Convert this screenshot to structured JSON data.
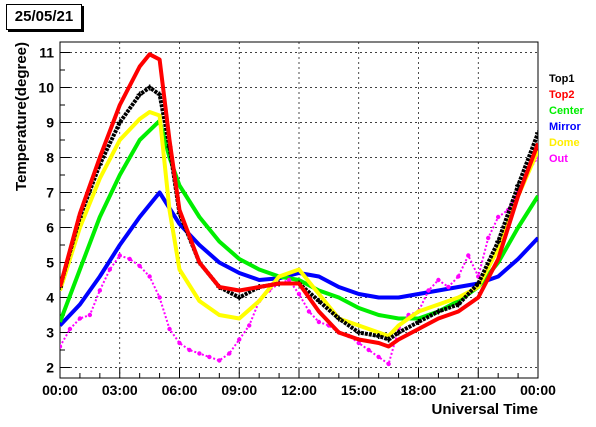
{
  "date_label": "25/05/21",
  "chart_data": {
    "type": "scatter",
    "title": "",
    "xlabel": "Universal Time",
    "ylabel": "Temperature(degree)",
    "x_unit": "hours UT",
    "xlim": [
      0,
      24
    ],
    "ylim": [
      1.7,
      11.3
    ],
    "x_tick_values": [
      0,
      3,
      6,
      9,
      12,
      15,
      18,
      21,
      24
    ],
    "x_tick_labels": [
      "00:00",
      "03:00",
      "06:00",
      "09:00",
      "12:00",
      "15:00",
      "18:00",
      "21:00",
      "00:00"
    ],
    "y_tick_values": [
      2,
      3,
      4,
      5,
      6,
      7,
      8,
      9,
      10,
      11
    ],
    "y_tick_labels": [
      "2",
      "3",
      "4",
      "5",
      "6",
      "7",
      "8",
      "9",
      "10",
      "11"
    ],
    "grid": true,
    "legend_position": "right",
    "series": [
      {
        "name": "Top1",
        "color": "#000000",
        "marker": "cross",
        "x": [
          0,
          1,
          2,
          3,
          4,
          4.5,
          5,
          5.5,
          6,
          7,
          8,
          9,
          10,
          11,
          12,
          13,
          14,
          15,
          16,
          16.5,
          17,
          18,
          19,
          20,
          21,
          22,
          23,
          24
        ],
        "y": [
          4.3,
          6.3,
          7.8,
          9.0,
          9.8,
          10.0,
          9.8,
          8.3,
          6.4,
          5.0,
          4.3,
          4.0,
          4.3,
          4.4,
          4.4,
          3.9,
          3.4,
          3.0,
          2.9,
          2.8,
          3.0,
          3.3,
          3.6,
          3.8,
          4.4,
          5.6,
          7.2,
          8.7
        ]
      },
      {
        "name": "Top2",
        "color": "#ff0000",
        "marker": "line",
        "x": [
          0,
          1,
          2,
          3,
          4,
          4.5,
          5,
          5.5,
          6,
          7,
          8,
          9,
          10,
          11,
          12,
          13,
          14,
          15,
          16,
          16.5,
          17,
          18,
          19,
          20,
          21,
          22,
          23,
          24
        ],
        "y": [
          4.3,
          6.4,
          8.0,
          9.5,
          10.6,
          10.95,
          10.8,
          8.5,
          6.5,
          5.0,
          4.3,
          4.2,
          4.3,
          4.4,
          4.4,
          3.6,
          3.0,
          2.8,
          2.7,
          2.6,
          2.8,
          3.1,
          3.4,
          3.6,
          4.0,
          5.1,
          6.9,
          8.4
        ]
      },
      {
        "name": "Center",
        "color": "#00ee00",
        "marker": "line",
        "x": [
          0,
          1,
          2,
          3,
          4,
          5,
          5.5,
          6,
          7,
          8,
          9,
          10,
          11,
          12,
          13,
          14,
          15,
          16,
          17,
          18,
          19,
          20,
          21,
          22,
          23,
          24
        ],
        "y": [
          3.3,
          4.8,
          6.3,
          7.5,
          8.5,
          9.05,
          8.0,
          7.2,
          6.3,
          5.6,
          5.1,
          4.8,
          4.6,
          4.5,
          4.2,
          4.0,
          3.7,
          3.5,
          3.4,
          3.4,
          3.6,
          3.9,
          4.3,
          5.0,
          6.0,
          6.9
        ]
      },
      {
        "name": "Mirror",
        "color": "#0000ff",
        "marker": "line",
        "x": [
          0,
          1,
          2,
          3,
          4,
          5,
          6,
          7,
          8,
          9,
          10,
          11,
          12,
          13,
          14,
          15,
          16,
          17,
          18,
          19,
          20,
          21,
          22,
          23,
          24
        ],
        "y": [
          3.2,
          3.8,
          4.6,
          5.5,
          6.3,
          7.0,
          6.1,
          5.5,
          5.0,
          4.7,
          4.5,
          4.55,
          4.7,
          4.6,
          4.3,
          4.1,
          4.0,
          4.0,
          4.1,
          4.2,
          4.3,
          4.4,
          4.6,
          5.1,
          5.7
        ]
      },
      {
        "name": "Dome",
        "color": "#ffff00",
        "marker": "line",
        "x": [
          0,
          1,
          2,
          3,
          4,
          4.5,
          5,
          5.5,
          6,
          7,
          8,
          9,
          10,
          11,
          12,
          13,
          14,
          15,
          16,
          16.5,
          17,
          18,
          19,
          20,
          21,
          22,
          23,
          24
        ],
        "y": [
          4.2,
          6.0,
          7.4,
          8.5,
          9.1,
          9.3,
          9.2,
          6.5,
          4.8,
          3.9,
          3.5,
          3.4,
          3.9,
          4.6,
          4.8,
          4.1,
          3.4,
          3.2,
          3.0,
          2.9,
          3.2,
          3.6,
          3.8,
          4.0,
          4.3,
          5.4,
          6.9,
          8.2
        ]
      },
      {
        "name": "Out",
        "color": "#ff00ff",
        "marker": "dot",
        "x": [
          0,
          0.5,
          1,
          1.5,
          2,
          2.5,
          3,
          3.5,
          4,
          4.5,
          5,
          5.5,
          6,
          6.5,
          7,
          7.5,
          8,
          8.5,
          9,
          9.5,
          10,
          10.5,
          11,
          11.5,
          12,
          12.5,
          13,
          13.5,
          14,
          14.5,
          15,
          15.5,
          16,
          16.5,
          17,
          17.5,
          18,
          18.5,
          19,
          19.5,
          20,
          20.5,
          21,
          21.5,
          22,
          22.5,
          23,
          23.5,
          24
        ],
        "y": [
          2.6,
          3.1,
          3.4,
          3.5,
          4.2,
          4.8,
          5.2,
          5.1,
          4.9,
          4.6,
          4.0,
          3.1,
          2.7,
          2.5,
          2.4,
          2.3,
          2.2,
          2.4,
          2.8,
          3.2,
          3.9,
          4.2,
          4.4,
          4.5,
          4.1,
          3.6,
          3.3,
          3.2,
          3.0,
          2.9,
          2.7,
          2.5,
          2.3,
          2.1,
          3.1,
          3.5,
          3.6,
          4.2,
          4.5,
          4.3,
          4.6,
          5.2,
          4.6,
          5.7,
          6.3,
          6.5,
          7.0,
          7.6,
          8.0
        ]
      }
    ]
  }
}
